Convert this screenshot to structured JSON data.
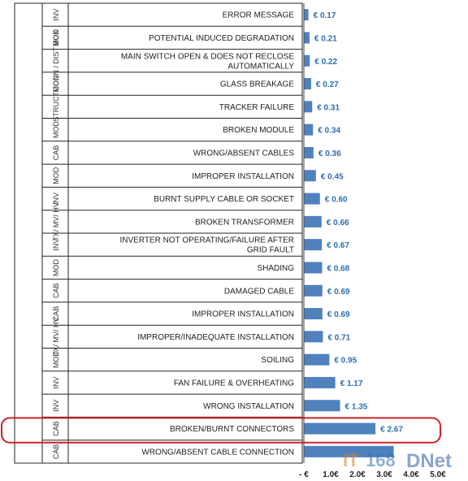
{
  "chart_data": {
    "type": "bar",
    "orientation": "horizontal",
    "currency": "€",
    "rows": [
      {
        "group": "INV",
        "label": "ERROR MESSAGE",
        "value": 0.17,
        "value_label": "€ 0.17"
      },
      {
        "group": "MOD",
        "label": "POTENTIAL INDUCED DEGRADATION",
        "value": 0.21,
        "value_label": "€ 0.21"
      },
      {
        "group": "CONN / DIST BOX",
        "label": "MAIN SWITCH OPEN & DOES NOT RECLOSE AUTOMATICALLY",
        "value": 0.22,
        "value_label": "€ 0.22"
      },
      {
        "group": "MOD",
        "label": "GLASS BREAKAGE",
        "value": 0.27,
        "value_label": "€ 0.27"
      },
      {
        "group": "STRUCT",
        "label": "TRACKER FAILURE",
        "value": 0.31,
        "value_label": "€ 0.31"
      },
      {
        "group": "MOD",
        "label": "BROKEN MODULE",
        "value": 0.34,
        "value_label": "€ 0.34"
      },
      {
        "group": "CAB",
        "label": "WRONG/ABSENT CABLES",
        "value": 0.36,
        "value_label": "€ 0.36"
      },
      {
        "group": "MOD",
        "label": "IMPROPER INSTALLATION",
        "value": 0.45,
        "value_label": "€ 0.45"
      },
      {
        "group": "INV",
        "label": "BURNT SUPPLY CABLE OR SOCKET",
        "value": 0.6,
        "value_label": "€ 0.60"
      },
      {
        "group": "TX/ MV/ HV",
        "label": "BROKEN TRANSFORMER",
        "value": 0.66,
        "value_label": "€ 0.66"
      },
      {
        "group": "INV",
        "label": "INVERTER NOT OPERATING/FAILURE AFTER GRID FAULT",
        "value": 0.67,
        "value_label": "€ 0.67"
      },
      {
        "group": "MOD",
        "label": "SHADING",
        "value": 0.68,
        "value_label": "€ 0.68"
      },
      {
        "group": "CAB",
        "label": "DAMAGED CABLE",
        "value": 0.69,
        "value_label": "€ 0.69"
      },
      {
        "group": "CAB",
        "label": "IMPROPER INSTALLATION",
        "value": 0.69,
        "value_label": "€ 0.69"
      },
      {
        "group": "TX/ MV/ HV",
        "label": "IMPROPER/INADEQUATE  INSTALLATION",
        "value": 0.71,
        "value_label": "€ 0.71"
      },
      {
        "group": "MOD",
        "label": "SOILING",
        "value": 0.95,
        "value_label": "€ 0.95"
      },
      {
        "group": "INV",
        "label": "FAN FAILURE & OVERHEATING",
        "value": 1.17,
        "value_label": "€ 1.17"
      },
      {
        "group": "INV",
        "label": "WRONG INSTALLATION",
        "value": 1.35,
        "value_label": "€ 1.35"
      },
      {
        "group": "CAB",
        "label": "BROKEN/BURNT CONNECTORS",
        "value": 2.67,
        "value_label": "€ 2.67",
        "highlight": true
      },
      {
        "group": "CAB",
        "label": "WRONG/ABSENT CABLE CONNECTION",
        "value": 3.35,
        "value_label": ""
      }
    ],
    "x_ticks": [
      "-  €",
      "1.0€",
      "2.0€",
      "3.0€",
      "4.0€",
      "5.0€"
    ],
    "xlim": [
      0,
      5
    ],
    "highlight_color": "#cc2222",
    "bar_color": "#4f81bd",
    "watermark": "IT168 DNet"
  }
}
